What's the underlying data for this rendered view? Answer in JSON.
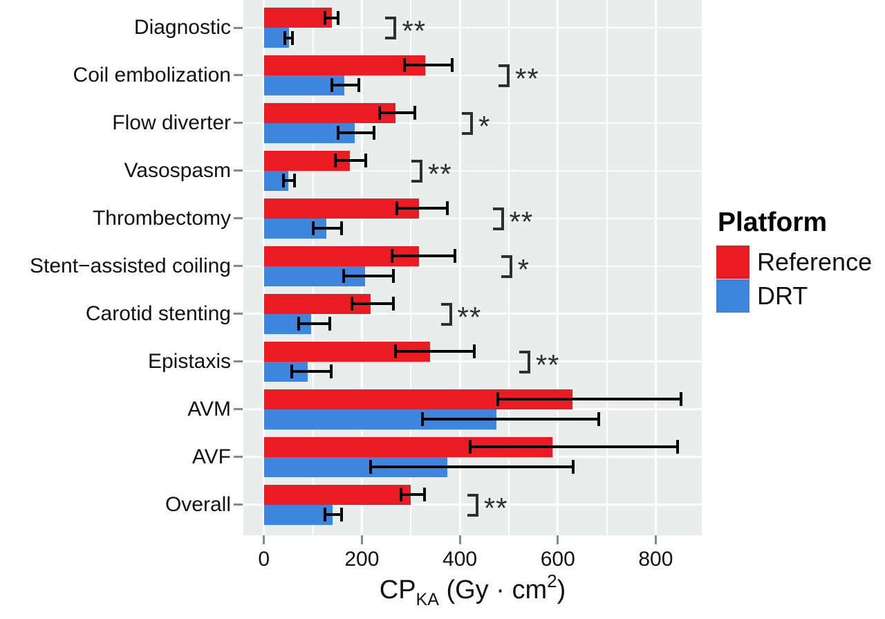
{
  "figure": {
    "colors": {
      "reference": "#EA1B23",
      "drt": "#3E85DE",
      "panel_bg": "#E9EDEB",
      "grid": "#FFFFFF",
      "error_bar": "#000000",
      "axis_tick": "#7F8B89",
      "significance": "#2F2F2F",
      "text": "#111111"
    }
  },
  "legend": {
    "title": "Platform",
    "items": [
      {
        "label": "Reference",
        "color_key": "reference"
      },
      {
        "label": "DRT",
        "color_key": "drt"
      }
    ]
  },
  "x_axis": {
    "title_main": "CP",
    "title_sub": "KA",
    "title_mid": " (Gy · cm",
    "title_sup": "2",
    "title_end": ")"
  },
  "chart_data": {
    "type": "bar",
    "orientation": "horizontal",
    "title": "",
    "xlabel": "CP_KA (Gy · cm^2)",
    "ylabel": "",
    "xlim": [
      -42,
      894
    ],
    "xticks": [
      0,
      200,
      400,
      600,
      800
    ],
    "grid": "on",
    "legend_position": "right",
    "categories": [
      "Diagnostic",
      "Coil embolization",
      "Flow diverter",
      "Vasospasm",
      "Thrombectomy",
      "Stent−assisted coiling",
      "Carotid stenting",
      "Epistaxis",
      "AVM",
      "AVF",
      "Overall"
    ],
    "series": [
      {
        "name": "Reference",
        "color_key": "reference",
        "values": [
          138,
          329,
          269,
          175,
          317,
          317,
          218,
          339,
          630,
          589,
          300
        ],
        "error_low": [
          124,
          287,
          236,
          146,
          271,
          261,
          179,
          269,
          477,
          421,
          280
        ],
        "error_high": [
          151,
          384,
          308,
          208,
          375,
          390,
          264,
          429,
          851,
          844,
          328
        ]
      },
      {
        "name": "DRT",
        "color_key": "drt",
        "values": [
          51,
          164,
          185,
          50,
          127,
          206,
          97,
          89,
          475,
          374,
          140
        ],
        "error_low": [
          43,
          139,
          152,
          40,
          101,
          162,
          71,
          57,
          323,
          218,
          125
        ],
        "error_high": [
          58,
          194,
          225,
          63,
          158,
          265,
          134,
          137,
          684,
          632,
          158
        ]
      }
    ],
    "significance": {
      "labels": [
        "**",
        "**",
        "*",
        "**",
        "**",
        "*",
        "**",
        "**",
        "",
        "",
        "**"
      ],
      "x_positions": [
        265,
        496,
        421,
        318,
        484,
        501,
        378,
        538,
        null,
        null,
        432
      ]
    }
  }
}
